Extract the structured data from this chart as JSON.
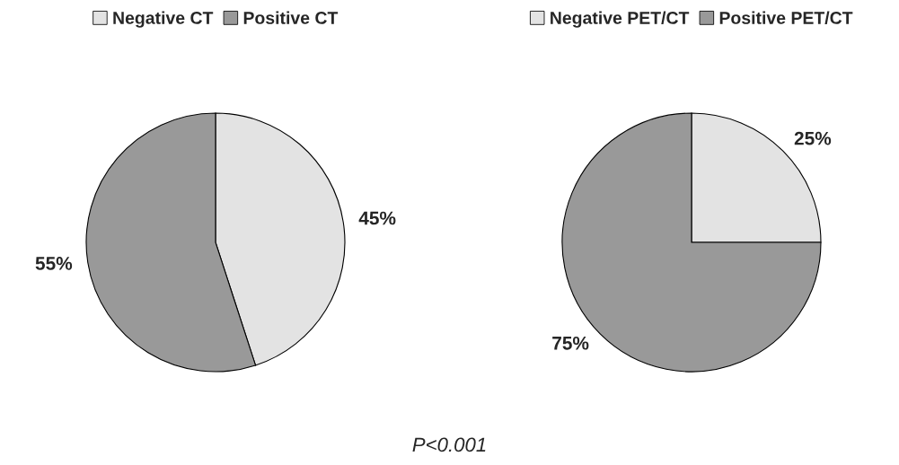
{
  "chart_data": [
    {
      "type": "pie",
      "categories": [
        "Negative CT",
        "Positive CT"
      ],
      "values": [
        45,
        55
      ],
      "colors": [
        "#e3e3e3",
        "#999999"
      ],
      "value_labels": [
        "45%",
        "55%"
      ],
      "legend": "top",
      "annotations": [
        "P<0.001"
      ]
    },
    {
      "type": "pie",
      "categories": [
        "Negative PET/CT",
        "Positive PET/CT"
      ],
      "values": [
        25,
        75
      ],
      "colors": [
        "#e3e3e3",
        "#999999"
      ],
      "value_labels": [
        "25%",
        "75%"
      ],
      "legend": "top"
    }
  ]
}
